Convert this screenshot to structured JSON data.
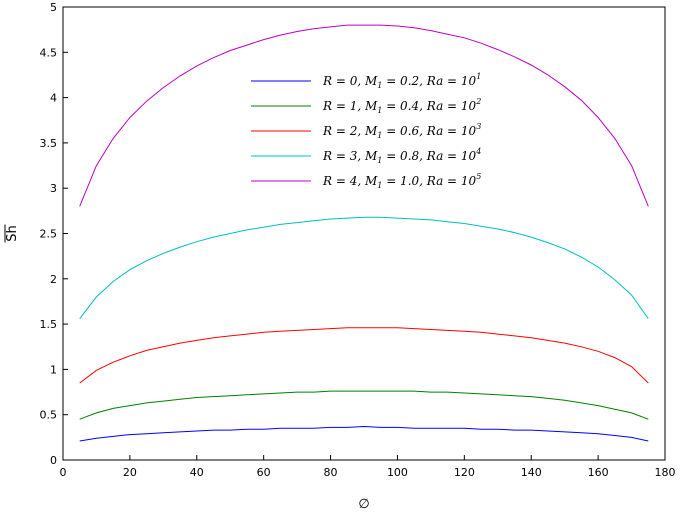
{
  "chart_data": {
    "type": "line",
    "xlabel": "∅",
    "ylabel": "Sh",
    "xlim": [
      0,
      180
    ],
    "ylim": [
      0,
      5
    ],
    "x_ticks": [
      "0",
      "20",
      "40",
      "60",
      "80",
      "100",
      "120",
      "140",
      "160",
      "180"
    ],
    "y_ticks": [
      "0",
      "0.5",
      "1",
      "1.5",
      "2",
      "2.5",
      "3",
      "3.5",
      "4",
      "4.5",
      "5"
    ],
    "grid": false,
    "legend_position": "top-center",
    "x": [
      5,
      10,
      15,
      20,
      25,
      30,
      35,
      40,
      45,
      50,
      55,
      60,
      65,
      70,
      75,
      80,
      85,
      90,
      95,
      100,
      105,
      110,
      115,
      120,
      125,
      130,
      135,
      140,
      145,
      150,
      155,
      160,
      165,
      170,
      175
    ],
    "series": [
      {
        "name": "R = 0, M1 = 0.2, Ra = 10^1",
        "legend_main": "R = 0, M",
        "legend_sub": "1",
        "legend_mid": " = 0.2, Ra = 10",
        "legend_sup": "1",
        "color": "#0000ff",
        "values": [
          0.21,
          0.24,
          0.26,
          0.28,
          0.29,
          0.3,
          0.31,
          0.32,
          0.33,
          0.33,
          0.34,
          0.34,
          0.35,
          0.35,
          0.35,
          0.36,
          0.36,
          0.37,
          0.36,
          0.36,
          0.35,
          0.35,
          0.35,
          0.35,
          0.34,
          0.34,
          0.33,
          0.33,
          0.32,
          0.31,
          0.3,
          0.29,
          0.27,
          0.25,
          0.21
        ]
      },
      {
        "name": "R = 1, M1 = 0.4, Ra = 10^2",
        "legend_main": "R = 1, M",
        "legend_sub": "1",
        "legend_mid": " = 0.4, Ra = 10",
        "legend_sup": "2",
        "color": "#008000",
        "values": [
          0.45,
          0.52,
          0.57,
          0.6,
          0.63,
          0.65,
          0.67,
          0.69,
          0.7,
          0.71,
          0.72,
          0.73,
          0.74,
          0.75,
          0.75,
          0.76,
          0.76,
          0.76,
          0.76,
          0.76,
          0.76,
          0.75,
          0.75,
          0.74,
          0.73,
          0.72,
          0.71,
          0.7,
          0.68,
          0.66,
          0.63,
          0.6,
          0.56,
          0.52,
          0.45
        ]
      },
      {
        "name": "R = 2, M1 = 0.6, Ra = 10^3",
        "legend_main": "R = 2, M",
        "legend_sub": "1",
        "legend_mid": " = 0.6, Ra = 10",
        "legend_sup": "3",
        "color": "#ff0000",
        "values": [
          0.85,
          0.99,
          1.08,
          1.15,
          1.21,
          1.25,
          1.29,
          1.32,
          1.35,
          1.37,
          1.39,
          1.41,
          1.42,
          1.43,
          1.44,
          1.45,
          1.46,
          1.46,
          1.46,
          1.46,
          1.45,
          1.44,
          1.43,
          1.42,
          1.41,
          1.39,
          1.37,
          1.35,
          1.32,
          1.29,
          1.25,
          1.2,
          1.13,
          1.03,
          0.85
        ]
      },
      {
        "name": "R = 3, M1 = 0.8, Ra = 10^4",
        "legend_main": "R = 3, M",
        "legend_sub": "1",
        "legend_mid": " = 0.8, Ra = 10",
        "legend_sup": "4",
        "color": "#00bfbf",
        "values": [
          1.56,
          1.8,
          1.97,
          2.1,
          2.2,
          2.28,
          2.35,
          2.41,
          2.46,
          2.5,
          2.54,
          2.57,
          2.6,
          2.62,
          2.64,
          2.66,
          2.67,
          2.68,
          2.68,
          2.67,
          2.66,
          2.65,
          2.63,
          2.61,
          2.58,
          2.55,
          2.51,
          2.46,
          2.4,
          2.33,
          2.24,
          2.13,
          1.99,
          1.82,
          1.56
        ]
      },
      {
        "name": "R = 4, M1 = 1.0, Ra = 10^5",
        "legend_main": "R = 4, M",
        "legend_sub": "1",
        "legend_mid": " = 1.0, Ra = 10",
        "legend_sup": "5",
        "color": "#bf00bf",
        "values": [
          2.8,
          3.25,
          3.55,
          3.78,
          3.96,
          4.11,
          4.24,
          4.35,
          4.44,
          4.52,
          4.58,
          4.64,
          4.69,
          4.73,
          4.76,
          4.78,
          4.8,
          4.8,
          4.8,
          4.79,
          4.77,
          4.74,
          4.7,
          4.66,
          4.6,
          4.53,
          4.45,
          4.36,
          4.25,
          4.12,
          3.97,
          3.78,
          3.55,
          3.25,
          2.8
        ]
      }
    ]
  }
}
